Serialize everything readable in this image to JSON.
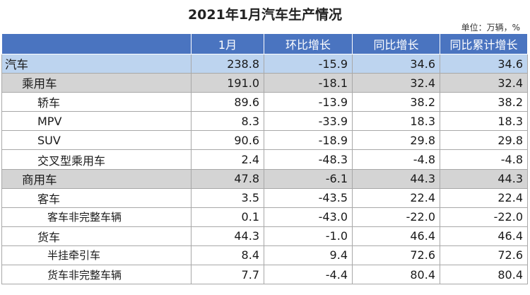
{
  "title": "2021年1月汽车生产情况",
  "unit_note": "单位：万辆，%",
  "table": {
    "headers": [
      "",
      "1月",
      "环比增长",
      "同比增长",
      "同比累计增长"
    ],
    "rows": [
      {
        "label": "汽车",
        "level": 0,
        "values": [
          "238.8",
          "-15.9",
          "34.6",
          "34.6"
        ]
      },
      {
        "label": "乘用车",
        "level": 1,
        "values": [
          "191.0",
          "-18.1",
          "32.4",
          "32.4"
        ]
      },
      {
        "label": "轿车",
        "level": 2,
        "values": [
          "89.6",
          "-13.9",
          "38.2",
          "38.2"
        ]
      },
      {
        "label": "MPV",
        "level": 2,
        "values": [
          "8.3",
          "-33.9",
          "18.3",
          "18.3"
        ]
      },
      {
        "label": "SUV",
        "level": 2,
        "values": [
          "90.6",
          "-18.9",
          "29.8",
          "29.8"
        ]
      },
      {
        "label": "交叉型乘用车",
        "level": 2,
        "values": [
          "2.4",
          "-48.3",
          "-4.8",
          "-4.8"
        ]
      },
      {
        "label": "商用车",
        "level": 1,
        "values": [
          "47.8",
          "-6.1",
          "44.3",
          "44.3"
        ]
      },
      {
        "label": "客车",
        "level": 2,
        "values": [
          "3.5",
          "-43.5",
          "22.4",
          "22.4"
        ]
      },
      {
        "label": "客车非完整车辆",
        "level": 3,
        "values": [
          "0.1",
          "-43.0",
          "-22.0",
          "-22.0"
        ]
      },
      {
        "label": "货车",
        "level": 2,
        "values": [
          "44.3",
          "-1.0",
          "46.4",
          "46.4"
        ]
      },
      {
        "label": "半挂牵引车",
        "level": 3,
        "values": [
          "8.4",
          "9.4",
          "72.6",
          "72.6"
        ]
      },
      {
        "label": "货车非完整车辆",
        "level": 3,
        "values": [
          "7.7",
          "-4.4",
          "80.4",
          "80.4"
        ]
      }
    ]
  }
}
